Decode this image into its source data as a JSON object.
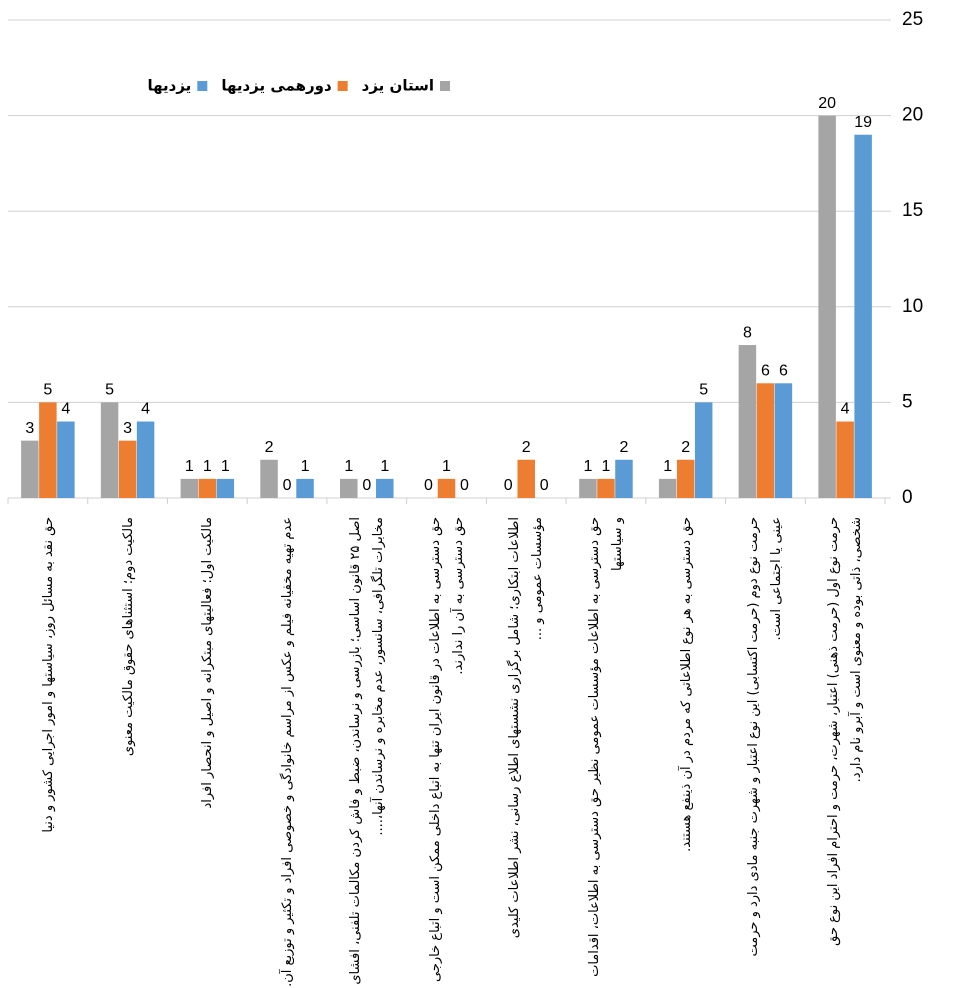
{
  "chart_data": {
    "type": "bar",
    "categories": [
      "حق نقد به مسائل روز، سیاستها و امور اجرایی کشور و دنیا",
      "مالکیت دوم؛ استثناهای حقوق مالکیت معنوی",
      "مالکیت اول؛ فعالیتهای مبتکرانه و اصیل و انحصار افراد",
      "عدم تهیه مخفیانه فیلم و عکس از مراسم خانوادگی و خصوصی افراد و تکثیر و توزیع آن.",
      "اصل ۲۵ قانون اساسی؛ بازرسی و نرساندن، ضبط و فاش کردن مکالمات تلفنی، افشای مخابرات تلگرافی، سانسور، عدم مخابره و نرساندن آنها،....",
      "حق دسترسی به اطلاعات در قانون ایران تنها به اتباع داخلی ممکن است و اتباع خارجی حق دسترسی به آن را ندارند.",
      "اطلاعات ابتکاری؛ شامل برگزاری نشستهای اطلاع رسانی، نشر اطلاعات کلیدی مؤسسات عمومی و ...",
      "حق دسترسی به اطلاعات مؤسسات عمومی نظیر حق دسترسی به اطلاعات، اقدامات و سیاستها",
      "حق دسترسی به هر نوع اطلاعاتی که مردم در آن ذینفع هستند.",
      "حرمت نوع دوم (حرمت اکتسابی) این نوع اعتبار و شهرت جنبه مادی دارد و حرمت عینی یا اجتماعی است.",
      "حرمت نوع اول (حرمت ذهنی) اعتبار، شهرت، حرمت و احترام افراد این نوع حق شخصی، ذاتی بوده و معنوی است و آبرو نام دارد."
    ],
    "series": [
      {
        "name": "استان یزد",
        "color": "#a5a5a5",
        "values": [
          3,
          5,
          1,
          2,
          1,
          0,
          0,
          1,
          1,
          8,
          20
        ]
      },
      {
        "name": "دورهمی یزدیها",
        "color": "#ed7d31",
        "values": [
          5,
          3,
          1,
          0,
          0,
          1,
          2,
          1,
          2,
          6,
          4
        ]
      },
      {
        "name": "یزدیها",
        "color": "#5b9bd5",
        "values": [
          4,
          4,
          1,
          1,
          1,
          0,
          0,
          2,
          5,
          6,
          19
        ]
      }
    ],
    "ylim": [
      0,
      25
    ],
    "yticks": [
      0,
      5,
      10,
      15,
      20,
      25
    ],
    "grid": true,
    "y_axis_side": "right",
    "legend": "top"
  }
}
